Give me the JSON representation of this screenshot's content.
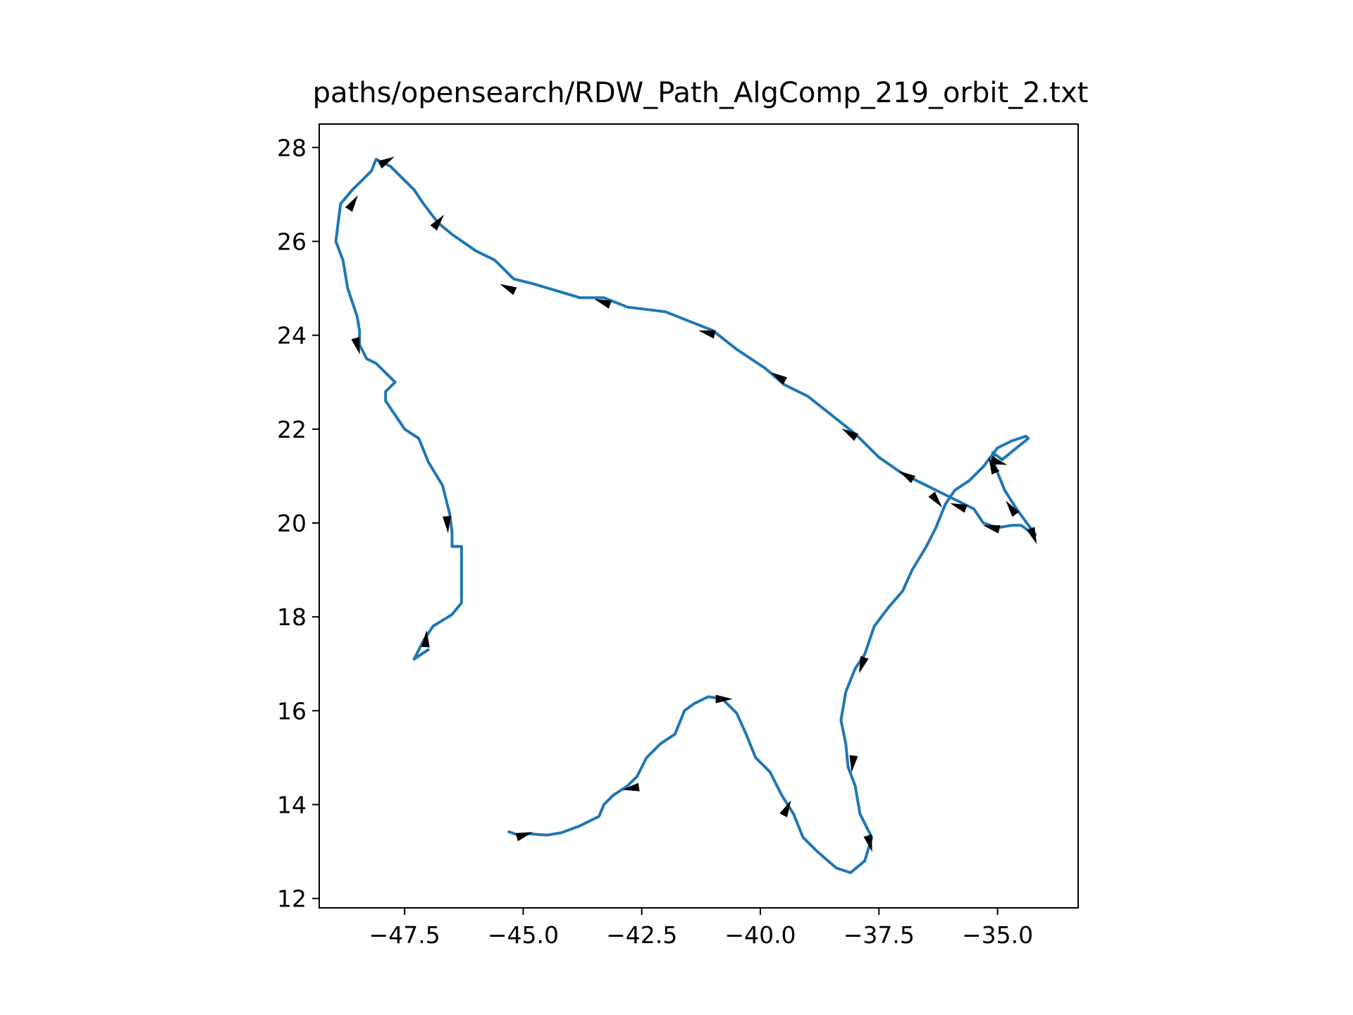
{
  "chart_data": {
    "type": "line",
    "title": "paths/opensearch/RDW_Path_AlgComp_219_orbit_2.txt",
    "xlabel": "",
    "ylabel": "",
    "xlim": [
      -49.3,
      -33.3
    ],
    "ylim": [
      11.8,
      28.5
    ],
    "x_ticks": [
      -47.5,
      -45.0,
      -42.5,
      -40.0,
      -37.5,
      -35.0
    ],
    "x_tick_labels": [
      "−47.5",
      "−45.0",
      "−42.5",
      "−40.0",
      "−37.5",
      "−35.0"
    ],
    "y_ticks": [
      12,
      14,
      16,
      18,
      20,
      22,
      24,
      26,
      28
    ],
    "y_tick_labels": [
      "12",
      "14",
      "16",
      "18",
      "20",
      "22",
      "24",
      "26",
      "28"
    ],
    "grid": false,
    "line_color": "#1f77b4",
    "arrow_color": "#000000",
    "series": [
      {
        "points": [
          [
            -47.0,
            17.3
          ],
          [
            -47.3,
            17.1
          ],
          [
            -47.1,
            17.5
          ],
          [
            -46.9,
            17.8
          ],
          [
            -46.5,
            18.05
          ],
          [
            -46.3,
            18.3
          ],
          [
            -46.3,
            18.8
          ],
          [
            -46.3,
            19.5
          ],
          [
            -46.5,
            19.5
          ],
          [
            -46.5,
            19.8
          ],
          [
            -46.55,
            20.2
          ],
          [
            -46.7,
            20.8
          ],
          [
            -47.0,
            21.3
          ],
          [
            -47.2,
            21.8
          ],
          [
            -47.5,
            22.0
          ],
          [
            -47.7,
            22.3
          ],
          [
            -47.9,
            22.6
          ],
          [
            -47.9,
            22.8
          ],
          [
            -47.7,
            23.0
          ],
          [
            -47.9,
            23.2
          ],
          [
            -48.1,
            23.4
          ],
          [
            -48.3,
            23.5
          ],
          [
            -48.45,
            23.8
          ],
          [
            -48.45,
            24.1
          ],
          [
            -48.5,
            24.4
          ],
          [
            -48.7,
            25.0
          ],
          [
            -48.8,
            25.6
          ],
          [
            -48.95,
            26.0
          ],
          [
            -48.9,
            26.4
          ],
          [
            -48.85,
            26.8
          ],
          [
            -48.6,
            27.1
          ],
          [
            -48.4,
            27.3
          ],
          [
            -48.2,
            27.5
          ],
          [
            -48.1,
            27.75
          ],
          [
            -47.8,
            27.6
          ],
          [
            -47.6,
            27.4
          ],
          [
            -47.3,
            27.1
          ],
          [
            -47.1,
            26.8
          ],
          [
            -46.8,
            26.4
          ],
          [
            -46.5,
            26.15
          ],
          [
            -46.0,
            25.8
          ],
          [
            -45.6,
            25.6
          ],
          [
            -45.2,
            25.2
          ],
          [
            -44.8,
            25.1
          ],
          [
            -44.3,
            24.95
          ],
          [
            -43.8,
            24.8
          ],
          [
            -43.3,
            24.8
          ],
          [
            -42.8,
            24.6
          ],
          [
            -42.0,
            24.5
          ],
          [
            -41.5,
            24.3
          ],
          [
            -41.0,
            24.1
          ],
          [
            -40.5,
            23.7
          ],
          [
            -39.9,
            23.3
          ],
          [
            -39.5,
            22.95
          ],
          [
            -39.0,
            22.7
          ],
          [
            -38.5,
            22.3
          ],
          [
            -38.0,
            21.9
          ],
          [
            -37.5,
            21.4
          ],
          [
            -37.0,
            21.05
          ],
          [
            -36.5,
            20.8
          ],
          [
            -36.1,
            20.6
          ],
          [
            -35.8,
            20.45
          ],
          [
            -35.5,
            20.3
          ],
          [
            -35.3,
            20.0
          ],
          [
            -35.0,
            19.9
          ],
          [
            -34.7,
            19.95
          ],
          [
            -34.5,
            19.95
          ],
          [
            -34.3,
            19.8
          ],
          [
            -34.2,
            19.75
          ],
          [
            -34.6,
            20.3
          ],
          [
            -34.85,
            20.7
          ],
          [
            -35.05,
            21.2
          ],
          [
            -35.1,
            21.5
          ],
          [
            -34.9,
            21.35
          ],
          [
            -34.6,
            21.6
          ],
          [
            -34.35,
            21.8
          ],
          [
            -34.4,
            21.85
          ],
          [
            -34.7,
            21.75
          ],
          [
            -35.0,
            21.6
          ],
          [
            -35.3,
            21.2
          ],
          [
            -35.6,
            20.9
          ],
          [
            -35.9,
            20.7
          ],
          [
            -36.1,
            20.4
          ],
          [
            -36.3,
            19.9
          ],
          [
            -36.5,
            19.5
          ],
          [
            -36.8,
            19.0
          ],
          [
            -37.0,
            18.55
          ],
          [
            -37.3,
            18.2
          ],
          [
            -37.6,
            17.8
          ],
          [
            -37.8,
            17.2
          ],
          [
            -38.0,
            16.9
          ],
          [
            -38.2,
            16.4
          ],
          [
            -38.3,
            15.8
          ],
          [
            -38.2,
            15.3
          ],
          [
            -38.15,
            14.8
          ],
          [
            -38.0,
            14.4
          ],
          [
            -37.9,
            13.8
          ],
          [
            -37.65,
            13.3
          ],
          [
            -37.8,
            12.8
          ],
          [
            -38.1,
            12.55
          ],
          [
            -38.4,
            12.65
          ],
          [
            -38.8,
            13.0
          ],
          [
            -39.1,
            13.3
          ],
          [
            -39.3,
            13.8
          ],
          [
            -39.55,
            14.2
          ],
          [
            -39.8,
            14.7
          ],
          [
            -40.1,
            15.0
          ],
          [
            -40.3,
            15.5
          ],
          [
            -40.5,
            15.95
          ],
          [
            -40.8,
            16.25
          ],
          [
            -41.1,
            16.3
          ],
          [
            -41.4,
            16.15
          ],
          [
            -41.6,
            16.0
          ],
          [
            -41.8,
            15.5
          ],
          [
            -42.1,
            15.3
          ],
          [
            -42.4,
            15.0
          ],
          [
            -42.6,
            14.6
          ],
          [
            -42.8,
            14.4
          ],
          [
            -43.1,
            14.2
          ],
          [
            -43.3,
            14.0
          ],
          [
            -43.4,
            13.75
          ],
          [
            -43.8,
            13.55
          ],
          [
            -44.2,
            13.4
          ],
          [
            -44.5,
            13.35
          ],
          [
            -44.9,
            13.38
          ],
          [
            -45.1,
            13.35
          ],
          [
            -45.3,
            13.42
          ]
        ],
        "arrows": [
          [
            -47.05,
            17.5,
            1.5
          ],
          [
            -46.6,
            20.0,
            -1.5
          ],
          [
            -48.5,
            23.8,
            -1.3
          ],
          [
            -48.6,
            26.8,
            1.0
          ],
          [
            -47.9,
            27.7,
            0.5
          ],
          [
            -46.8,
            26.4,
            0.9
          ],
          [
            -45.3,
            25.0,
            2.7
          ],
          [
            -43.3,
            24.7,
            2.8
          ],
          [
            -41.1,
            24.05,
            2.9
          ],
          [
            -39.6,
            23.1,
            2.6
          ],
          [
            -38.1,
            21.9,
            2.6
          ],
          [
            -36.9,
            21.0,
            2.6
          ],
          [
            -35.8,
            20.35,
            2.8
          ],
          [
            -35.1,
            19.9,
            2.9
          ],
          [
            -34.25,
            19.75,
            -1.2
          ],
          [
            -34.7,
            20.3,
            2.2
          ],
          [
            -35.0,
            21.3,
            -0.3
          ],
          [
            -35.1,
            21.2,
            2.0
          ],
          [
            -36.3,
            20.5,
            -0.9
          ],
          [
            -37.85,
            17.0,
            -1.9
          ],
          [
            -38.05,
            14.9,
            -1.7
          ],
          [
            -37.7,
            13.2,
            -1.3
          ],
          [
            -39.45,
            13.9,
            1.1
          ],
          [
            -40.8,
            16.25,
            0.0
          ],
          [
            -42.7,
            14.35,
            3.3
          ],
          [
            -45.0,
            13.35,
            0.3
          ]
        ]
      }
    ]
  }
}
